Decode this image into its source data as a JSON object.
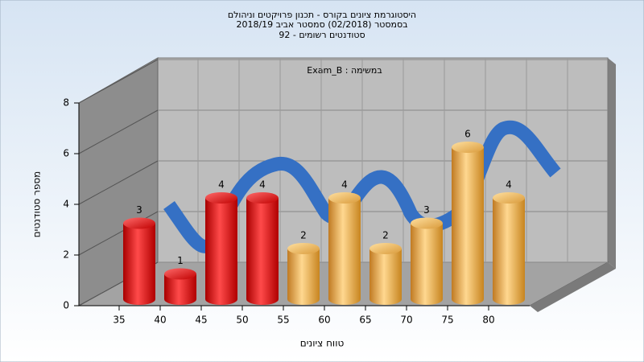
{
  "chart_data": {
    "type": "bar3d",
    "title": "היסטוגרמת ציונים בקורס - תכנון פרויקטים וניהולם",
    "subtitle": [
      "בסמסטר (02/2018) סמסטר אביב 2018/19",
      "סטודנטים רשומים - 92"
    ],
    "annotation": "Exam_B : במשימה",
    "xlabel": "טווח ציונים",
    "ylabel": "מספר סטודנטים",
    "categories": [
      "35",
      "40",
      "45",
      "50",
      "55",
      "60",
      "65",
      "70",
      "75",
      "80"
    ],
    "values": [
      3,
      1,
      4,
      4,
      2,
      4,
      2,
      3,
      6,
      4
    ],
    "colors": [
      "red",
      "red",
      "red",
      "red",
      "orange",
      "orange",
      "orange",
      "orange",
      "orange",
      "orange"
    ],
    "ylim": [
      0,
      8
    ],
    "yticks": [
      0,
      2,
      4,
      6,
      8
    ],
    "grid": true
  }
}
